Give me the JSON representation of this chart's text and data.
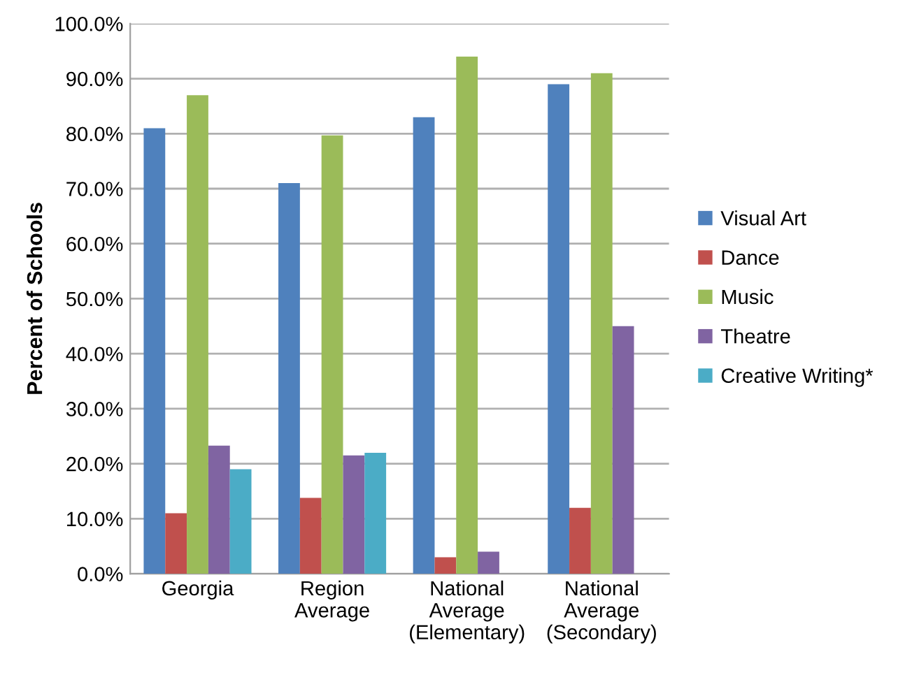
{
  "chart_data": {
    "type": "bar",
    "ylabel": "Percent of Schools",
    "categories": [
      "Georgia",
      "Region\nAverage",
      "National\nAverage\n(Elementary)",
      "National\nAverage\n(Secondary)"
    ],
    "series": [
      {
        "name": "Visual Art",
        "color": "#4f81bd",
        "values": [
          81,
          71,
          83,
          89
        ]
      },
      {
        "name": "Dance",
        "color": "#c0504d",
        "values": [
          11,
          13.8,
          3,
          12
        ]
      },
      {
        "name": "Music",
        "color": "#9bbb59",
        "values": [
          87,
          79.7,
          94,
          91
        ]
      },
      {
        "name": "Theatre",
        "color": "#8064a2",
        "values": [
          23.3,
          21.5,
          4,
          45
        ]
      },
      {
        "name": "Creative Writing*",
        "color": "#4bacc6",
        "values": [
          19,
          22,
          null,
          null
        ]
      }
    ],
    "ylim": [
      0,
      100
    ],
    "yticks": [
      {
        "value": 0,
        "label": "0.0%"
      },
      {
        "value": 10,
        "label": "10.0%"
      },
      {
        "value": 20,
        "label": "20.0%"
      },
      {
        "value": 30,
        "label": "30.0%"
      },
      {
        "value": 40,
        "label": "40.0%"
      },
      {
        "value": 50,
        "label": "50.0%"
      },
      {
        "value": 60,
        "label": "60.0%"
      },
      {
        "value": 70,
        "label": "70.0%"
      },
      {
        "value": 80,
        "label": "80.0%"
      },
      {
        "value": 90,
        "label": "90.0%"
      },
      {
        "value": 100,
        "label": "100.0%"
      }
    ],
    "grid": "y",
    "legend": "right"
  }
}
